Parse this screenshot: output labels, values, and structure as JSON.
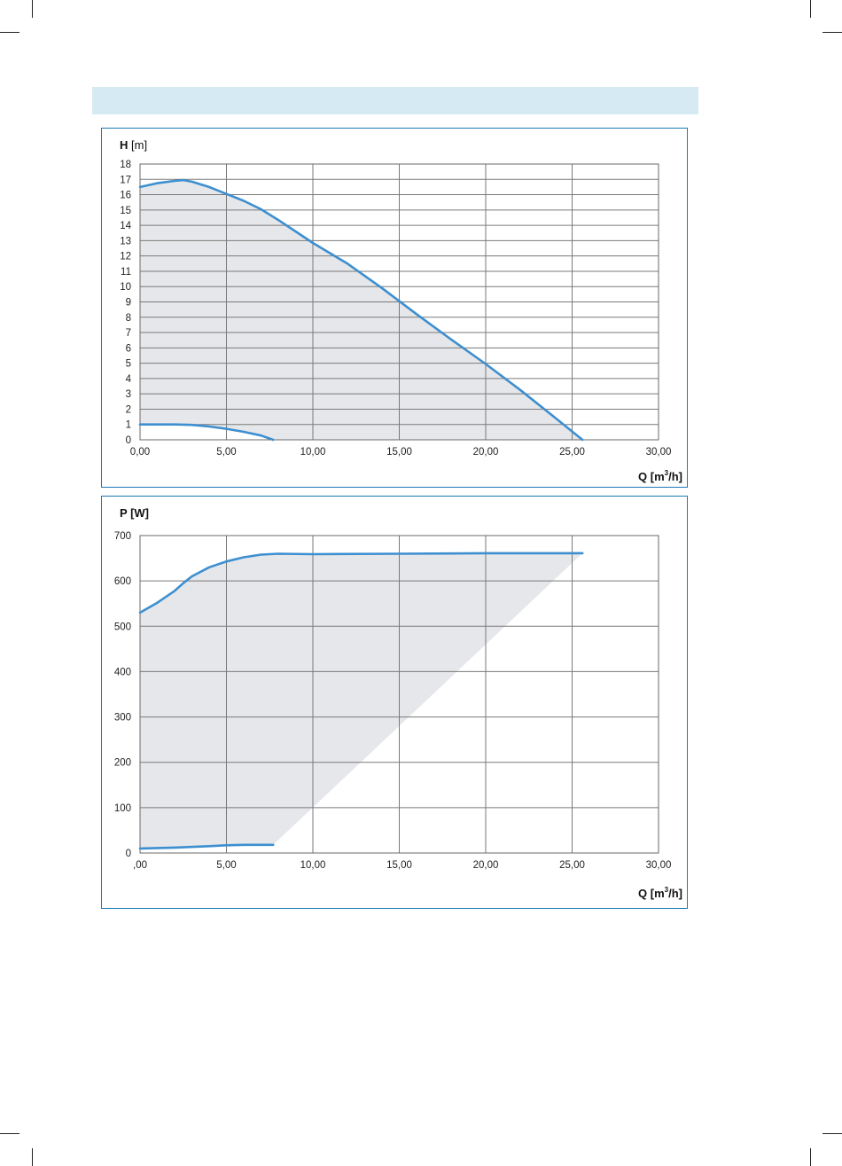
{
  "chart_data": [
    {
      "type": "area",
      "ylabel_main": "H",
      "ylabel_unit": "[m]",
      "xlabel_main": "Q",
      "xlabel_unit": "[m",
      "xlabel_sup": "3",
      "xlabel_end": "/h]",
      "xlim": [
        0,
        30
      ],
      "ylim": [
        0,
        18
      ],
      "x_ticks": [
        0,
        5,
        10,
        15,
        20,
        25,
        30
      ],
      "x_tick_labels": [
        "0,00",
        "5,00",
        "10,00",
        "15,00",
        "20,00",
        "25,00",
        "30,00"
      ],
      "y_ticks": [
        0,
        1,
        2,
        3,
        4,
        5,
        6,
        7,
        8,
        9,
        10,
        11,
        12,
        13,
        14,
        15,
        16,
        17,
        18
      ],
      "y_tick_labels": [
        "0",
        "1",
        "2",
        "3",
        "4",
        "5",
        "6",
        "7",
        "8",
        "9",
        "10",
        "11",
        "12",
        "13",
        "14",
        "15",
        "16",
        "17",
        "18"
      ],
      "grid": true,
      "series": [
        {
          "role": "max",
          "points": [
            [
              0,
              16.5
            ],
            [
              1,
              16.75
            ],
            [
              2,
              16.9
            ],
            [
              2.5,
              16.95
            ],
            [
              3,
              16.85
            ],
            [
              4,
              16.5
            ],
            [
              5,
              16.05
            ],
            [
              6,
              15.6
            ],
            [
              7,
              15.05
            ],
            [
              8,
              14.35
            ],
            [
              9,
              13.6
            ],
            [
              10,
              12.85
            ],
            [
              12,
              11.5
            ],
            [
              14,
              9.9
            ],
            [
              16,
              8.2
            ],
            [
              18,
              6.55
            ],
            [
              20,
              4.95
            ],
            [
              22,
              3.25
            ],
            [
              24,
              1.45
            ],
            [
              25.6,
              0
            ]
          ]
        },
        {
          "role": "min",
          "points": [
            [
              0,
              1.0
            ],
            [
              1,
              1.0
            ],
            [
              2,
              1.0
            ],
            [
              3,
              0.97
            ],
            [
              4,
              0.87
            ],
            [
              5,
              0.72
            ],
            [
              6,
              0.52
            ],
            [
              7,
              0.28
            ],
            [
              7.7,
              0
            ]
          ]
        }
      ],
      "fill_color": "#e6e7ea",
      "line_color": "#3d8fd0",
      "grid_color": "#7a7a7a"
    },
    {
      "type": "area",
      "ylabel_main": "P",
      "ylabel_unit": "[W]",
      "xlabel_main": "Q",
      "xlabel_unit": "[m",
      "xlabel_sup": "3",
      "xlabel_end": "/h]",
      "xlim": [
        0,
        30
      ],
      "ylim": [
        0,
        700
      ],
      "x_ticks": [
        0,
        5,
        10,
        15,
        20,
        25,
        30
      ],
      "x_tick_labels": [
        ",00",
        "5,00",
        "10,00",
        "15,00",
        "20,00",
        "25,00",
        "30,00"
      ],
      "y_ticks": [
        0,
        100,
        200,
        300,
        400,
        500,
        600,
        700
      ],
      "y_tick_labels": [
        "0",
        "100",
        "200",
        "300",
        "400",
        "500",
        "600",
        "700"
      ],
      "grid": true,
      "series": [
        {
          "role": "max",
          "points": [
            [
              0,
              530
            ],
            [
              1,
              552
            ],
            [
              2,
              578
            ],
            [
              2.5,
              595
            ],
            [
              3,
              610
            ],
            [
              4,
              630
            ],
            [
              5,
              643
            ],
            [
              6,
              652
            ],
            [
              7,
              658
            ],
            [
              8,
              660
            ],
            [
              10,
              659
            ],
            [
              15,
              660
            ],
            [
              20,
              661
            ],
            [
              25,
              661
            ],
            [
              25.6,
              661
            ]
          ]
        },
        {
          "role": "min",
          "points": [
            [
              0,
              10
            ],
            [
              2,
              12
            ],
            [
              4,
              15
            ],
            [
              5,
              17
            ],
            [
              6,
              18
            ],
            [
              7,
              18
            ],
            [
              7.7,
              18
            ]
          ]
        }
      ],
      "fill_color": "#e6e7ea",
      "line_color": "#3d8fd0",
      "grid_color": "#7a7a7a"
    }
  ]
}
